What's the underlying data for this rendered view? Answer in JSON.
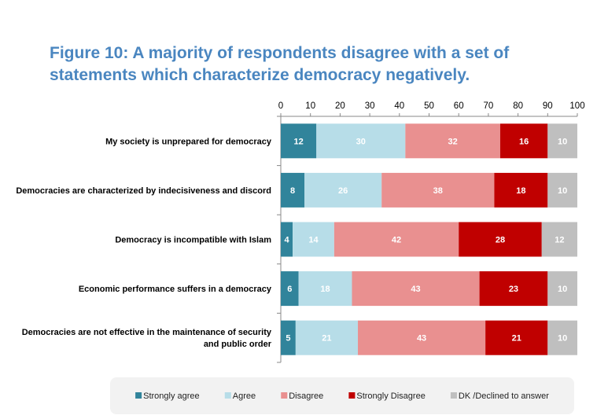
{
  "chart_data": {
    "type": "bar",
    "orientation": "horizontal",
    "stacked": true,
    "title": "Figure 10: A majority of respondents disagree with a set of statements which characterize democracy negatively.",
    "title_lines": [
      "Figure 10: A majority of respondents disagree with a set of",
      "statements which characterize democracy negatively."
    ],
    "categories": [
      [
        "My society is unprepared for democracy"
      ],
      [
        "Democracies are characterized by indecisiveness and discord"
      ],
      [
        "Democracy is incompatible with Islam"
      ],
      [
        "Economic performance suffers in a democracy"
      ],
      [
        "Democracies are not effective in the maintenance of security",
        "and public order"
      ]
    ],
    "xlim": [
      0,
      100
    ],
    "xticks": [
      0,
      10,
      20,
      30,
      40,
      50,
      60,
      70,
      80,
      90,
      100
    ],
    "axis_position": "top",
    "grid": false,
    "legend_position": "bottom",
    "series": [
      {
        "name": "Strongly agree",
        "color": "#31849b",
        "label_color": "#ffffff",
        "values": [
          12,
          8,
          4,
          6,
          5
        ]
      },
      {
        "name": "Agree",
        "color": "#b7dde8",
        "label_color": "#ffffff",
        "values": [
          30,
          26,
          14,
          18,
          21
        ]
      },
      {
        "name": "Disagree",
        "color": "#e99090",
        "label_color": "#ffffff",
        "values": [
          32,
          38,
          42,
          43,
          43
        ]
      },
      {
        "name": "Strongly Disagree",
        "color": "#c00000",
        "label_color": "#ffffff",
        "values": [
          16,
          18,
          28,
          23,
          21
        ]
      },
      {
        "name": "DK /Declined to answer",
        "color": "#bfbfbf",
        "label_color": "#ffffff",
        "values": [
          10,
          10,
          12,
          10,
          10
        ]
      }
    ]
  }
}
